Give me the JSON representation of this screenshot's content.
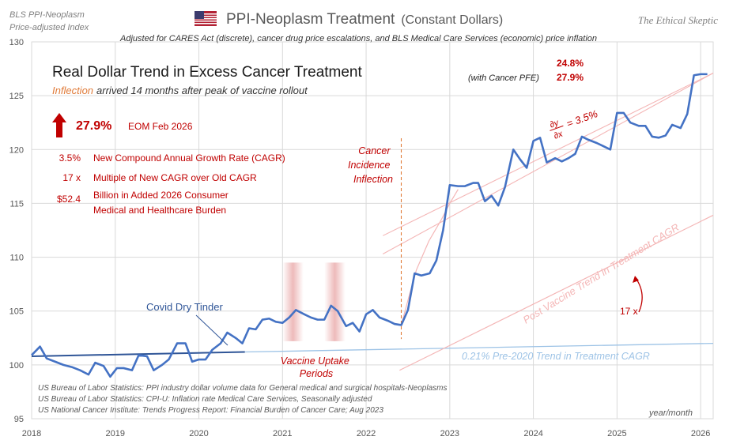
{
  "header": {
    "series_label_line1": "BLS PPI-Neoplasm",
    "series_label_line2": "Price-adjusted Index",
    "title_main": "PPI-Neoplasm Treatment",
    "title_sub": "(Constant Dollars)",
    "brand": "The Ethical Skeptic",
    "subtitle": "Adjusted for CARES Act (discrete), cancer drug price escalations, and BLS Medical Care Services (economic) price inflation"
  },
  "summary": {
    "headline": "Real Dollar Trend in Excess Cancer Treatment",
    "inflection_word": "Inflection",
    "inflection_rest": "arrived 14 months after peak of vaccine rollout",
    "big_value": "27.9%",
    "big_label": "EOM Feb 2026",
    "stats": [
      {
        "value": "3.5%",
        "label": "New Compound Annual Growth Rate (CAGR)"
      },
      {
        "value": "17 x",
        "label": "Multiple of New CAGR over Old CAGR"
      },
      {
        "value": "$52.4",
        "label": "Billion in Added 2026 Consumer",
        "label2": "Medical and Healthcare Burden"
      }
    ],
    "top_right_value": "24.8%",
    "pfe_label": "(with Cancer PFE)",
    "pfe_value": "27.9%"
  },
  "annotations": {
    "covid": "Covid Dry Tinder",
    "cancer_l1": "Cancer",
    "cancer_l2": "Incidence",
    "cancer_l3": "Inflection",
    "vaccine_l1": "Vaccine Uptake",
    "vaccine_l2": "Periods",
    "deriv_num": "∂y",
    "deriv_den": "∂x",
    "deriv_eq": "= 3.5%",
    "post_trend": "Post Vaccine Trend in Treatment CAGR",
    "multiple": "17 x",
    "pre_trend": "0.21%  Pre-2020 Trend in Treatment CAGR",
    "axis_note": "year/month"
  },
  "sources": [
    "US Bureau of Labor Statistics: PPI industry dollar volume data for General medical and surgical hospitals-Neoplasms",
    "US Bureau of Labor Statistics: CPI-U: Inflation rate Medical Care Services, Seasonally adjusted",
    "US National Cancer Institute: Trends Progress Report: Financial Burden of Cancer Care; Aug 2023"
  ],
  "colors": {
    "series": "#4472C4",
    "accent_red": "#C00000",
    "trend_blue": "#9DC3E6",
    "trend_pink": "#F4B6B6",
    "vaccine_band": "#E8A3A3"
  },
  "chart_data": {
    "type": "line",
    "xlim": [
      2018.0,
      2026.15
    ],
    "ylim": [
      95,
      130
    ],
    "x_ticks": [
      2018,
      2019,
      2020,
      2021,
      2022,
      2023,
      2024,
      2025,
      2026
    ],
    "y_ticks": [
      95,
      100,
      105,
      110,
      115,
      120,
      125,
      130
    ],
    "grid": true,
    "vaccine_periods": [
      [
        2021.0,
        2021.25
      ],
      [
        2021.5,
        2021.75
      ]
    ],
    "inflection_x": 2022.42,
    "series": [
      {
        "x": [
          2018.0,
          2018.1,
          2018.18,
          2018.28,
          2018.38,
          2018.48,
          2018.58,
          2018.68,
          2018.76,
          2018.86,
          2018.94,
          2019.02,
          2019.1,
          2019.2,
          2019.28,
          2019.38,
          2019.46,
          2019.56,
          2019.64,
          2019.74,
          2019.84,
          2019.92,
          2020.0,
          2020.08,
          2020.16,
          2020.26,
          2020.34,
          2020.44,
          2020.52,
          2020.6,
          2020.68,
          2020.76,
          2020.84,
          2020.92,
          2021.0,
          2021.08,
          2021.16,
          2021.26,
          2021.34,
          2021.42,
          2021.5,
          2021.58,
          2021.66,
          2021.76,
          2021.84,
          2021.92,
          2022.0,
          2022.08,
          2022.16,
          2022.26,
          2022.34,
          2022.42,
          2022.5,
          2022.58,
          2022.66,
          2022.76,
          2022.84,
          2022.92,
          2023.0,
          2023.1,
          2023.18,
          2023.28,
          2023.34,
          2023.42,
          2023.5,
          2023.58,
          2023.66,
          2023.76,
          2023.84,
          2023.92,
          2024.0,
          2024.08,
          2024.16,
          2024.26,
          2024.34,
          2024.42,
          2024.5,
          2024.58,
          2024.66,
          2024.76,
          2024.84,
          2024.92,
          2025.0,
          2025.08,
          2025.16,
          2025.26,
          2025.34,
          2025.42,
          2025.5,
          2025.58,
          2025.66,
          2025.76,
          2025.84,
          2025.92,
          2026.0,
          2026.08
        ],
        "y": [
          100.9,
          101.7,
          100.6,
          100.3,
          100.0,
          99.8,
          99.5,
          99.1,
          100.2,
          99.9,
          98.9,
          99.7,
          99.7,
          99.5,
          100.9,
          100.8,
          99.5,
          100.0,
          100.5,
          102.0,
          102.0,
          100.3,
          100.5,
          100.5,
          101.4,
          102.0,
          103.0,
          102.5,
          102.0,
          103.4,
          103.3,
          104.2,
          104.3,
          104.0,
          103.9,
          104.4,
          105.1,
          104.7,
          104.4,
          104.2,
          104.2,
          105.5,
          105.0,
          103.6,
          103.9,
          103.1,
          104.7,
          105.1,
          104.4,
          104.1,
          103.8,
          103.7,
          105.1,
          108.5,
          108.3,
          108.5,
          109.7,
          112.5,
          116.7,
          116.6,
          116.6,
          116.9,
          116.9,
          115.2,
          115.7,
          114.8,
          116.5,
          120.0,
          119.1,
          118.3,
          120.8,
          121.1,
          118.8,
          119.2,
          118.9,
          119.2,
          119.6,
          121.2,
          120.9,
          120.6,
          120.3,
          120.0,
          123.4,
          123.4,
          122.5,
          122.2,
          122.2,
          121.2,
          121.1,
          121.3,
          122.3,
          122.0,
          123.3,
          126.9,
          127.0,
          127.0
        ]
      }
    ],
    "pre_trend_line": {
      "x": [
        2018.0,
        2020.55
      ],
      "y": [
        100.8,
        101.2
      ]
    },
    "pre_trend_extension": {
      "x": [
        2020.55,
        2026.15
      ],
      "y": [
        101.2,
        102.0
      ]
    },
    "post_trend_upper": {
      "x": [
        2022.2,
        2026.15
      ],
      "y": [
        112.0,
        127.1
      ]
    },
    "post_trend_upper2": {
      "x": [
        2022.2,
        2026.15
      ],
      "y": [
        110.3,
        127.1
      ]
    },
    "post_trend_lower": {
      "x": [
        2022.4,
        2026.15
      ],
      "y": [
        99.5,
        113.9
      ]
    },
    "inflection_curve": {
      "x": [
        2022.42,
        2022.5,
        2022.6,
        2022.75,
        2022.9,
        2023.0,
        2023.1
      ],
      "y": [
        103.7,
        106.0,
        108.8,
        111.5,
        113.5,
        115.0,
        116.3
      ]
    }
  }
}
